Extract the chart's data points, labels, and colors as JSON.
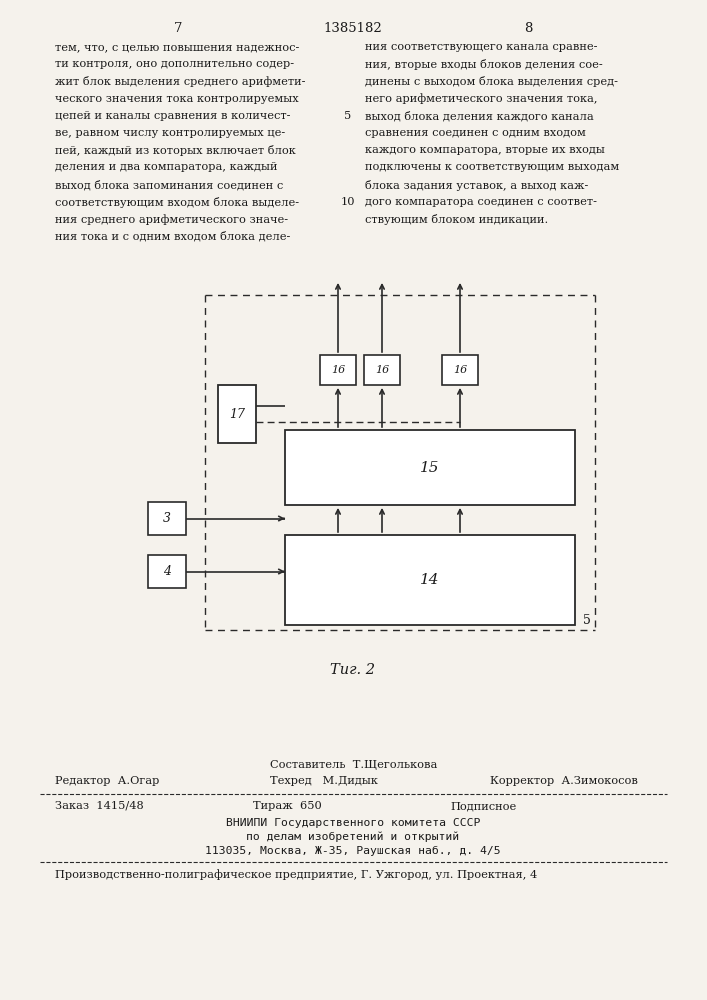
{
  "page_number_left": "7",
  "patent_number": "1385182",
  "page_number_right": "8",
  "text_left": "тем, что, с целью повышения надежнос-\nти контроля, оно дополнительно содер-\nжит блок выделения среднего арифмети-\nческого значения тока контролируемых\nцепей и каналы сравнения в количест-\nве, равном числу контролируемых це-\nпей, каждый из которых включает блок\nделения и два компаратора, каждый\nвыход блока запоминания соединен с\nсоответствующим входом блока выделе-\nния среднего арифметического значе-\nния тока и с одним входом блока деле-",
  "text_left_linenum1": "5",
  "text_left_linenum2": "10",
  "text_right": "ния соответствующего канала сравне-\nния, вторые входы блоков деления сое-\nдинены с выходом блока выделения сред-\nнего арифметического значения тока,\nвыход блока деления каждого канала\nсравнения соединен с одним входом\nкаждого компаратора, вторые их входы\nподключены к соответствующим выходам\nблока задания уставок, а выход каж-\nдого компаратора соединен с соответ-\nствующим блоком индикации.",
  "fig_label": "Τиг. 2",
  "editor_label": "Редактор  А.Огар",
  "composer_label": "Составитель  Т.Щеголькова",
  "techred_label": "Техред   М.Дидык",
  "corrector_label": "Корректор  А.Зимокосов",
  "order_label": "Заказ  1415/48",
  "tirazh_label": "Тираж  650",
  "podpisnoe_label": "Подписное",
  "vnipi_line1": "ВНИИПИ Государственного комитета СССР",
  "vnipi_line2": "по делам изобретений и открытий",
  "vnipi_line3": "113035, Москва, Ж-35, Раушская наб., д. 4/5",
  "factory_line": "Производственно-полиграфическое предприятие, Г. Ужгород, ул. Проектная, 4",
  "bg_color": "#f5f2ec",
  "text_color": "#1a1a1a",
  "line_color": "#2a2a2a"
}
